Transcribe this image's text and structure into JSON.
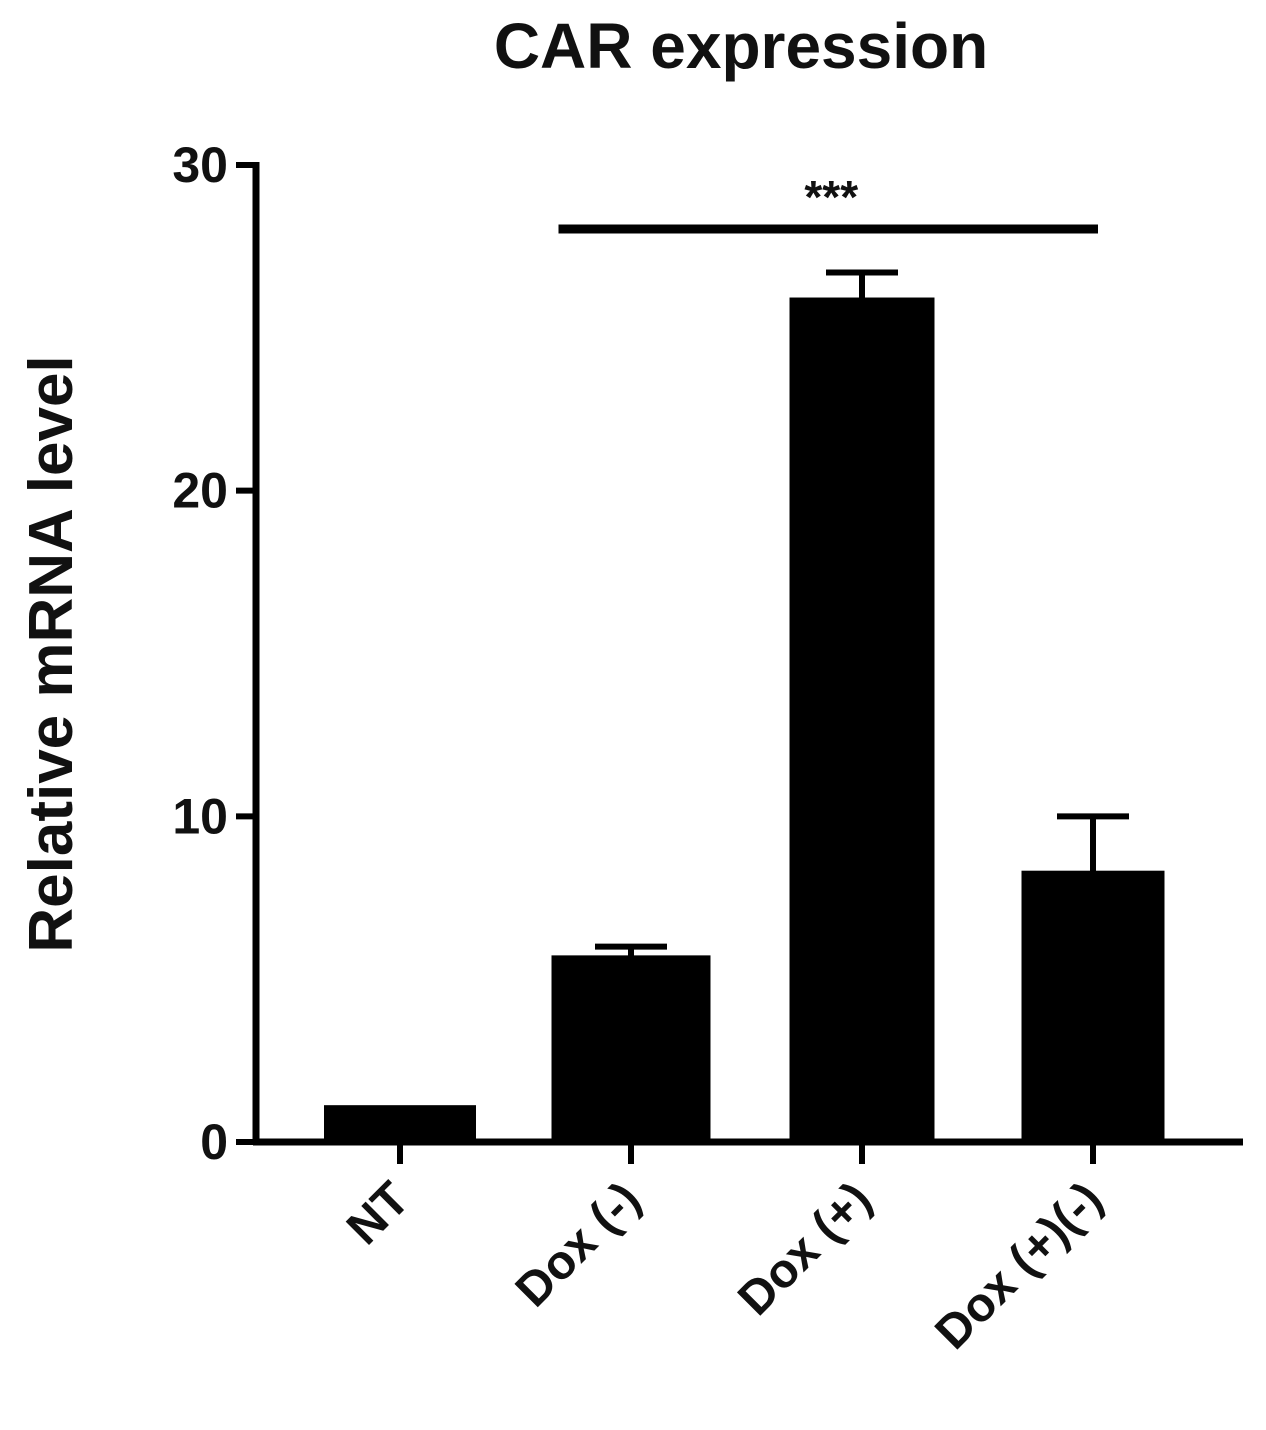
{
  "chart_data": {
    "type": "bar",
    "title": "CAR expression",
    "xlabel": "",
    "ylabel": "Relative mRNA level",
    "ylim": [
      0,
      30
    ],
    "yticks": [
      0,
      10,
      20,
      30
    ],
    "categories": [
      "NT",
      "Dox (-)",
      "Dox (+)",
      "Dox (+)(-)"
    ],
    "values": [
      1.1,
      5.7,
      25.9,
      8.3
    ],
    "error_upper": [
      0,
      0.3,
      0.8,
      1.7
    ],
    "bar_color": "#000000",
    "grid": false,
    "legend": "none",
    "significance": [
      {
        "from": "Dox (-)",
        "to": "Dox (+)(-)",
        "label": "***"
      }
    ]
  }
}
